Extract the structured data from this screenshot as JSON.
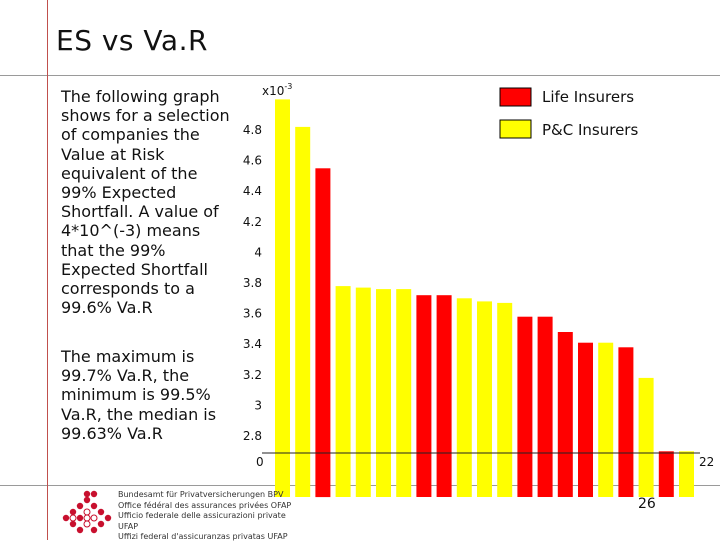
{
  "slide": {
    "title": "ES vs Va.R",
    "paragraph1": "The following graph shows for a selection of companies the Value at Risk equivalent of the 99% Expected Shortfall. A value of 4*10^(-3) means that the 99% Expected Shortfall corresponds to a 99.6% Va.R",
    "paragraph2": "The maximum is 99.7% Va.R, the minimum is 99.5% Va.R, the median is 99.63% Va.R",
    "page_number": "26",
    "footer_lines": [
      "Bundesamt für Privatversicherungen BPV",
      "Office fédéral des assurances privées OFAP",
      "Ufficio federale delle assicurazioni private UFAP",
      "Uffizi federal d'assicuranzas privatas UFAP"
    ],
    "colors": {
      "accent_line": "#c0504d",
      "life": "#ff0000",
      "pc": "#ffff00"
    }
  },
  "chart_data": {
    "type": "bar",
    "exponent_label": "x10",
    "exponent_power": "-3",
    "ylim": [
      2.7,
      5.1
    ],
    "yticks": [
      "2.8",
      "3",
      "3.2",
      "3.4",
      "3.6",
      "3.8",
      "4",
      "4.2",
      "4.4",
      "4.6",
      "4.8"
    ],
    "xtick_first": "0",
    "xtick_last": "22",
    "legend": [
      {
        "name": "Life Insurers",
        "color": "#ff0000"
      },
      {
        "name": "P&C Insurers",
        "color": "#ffff00"
      }
    ],
    "bars": [
      {
        "value": 5.0,
        "group": "P&C Insurers"
      },
      {
        "value": 4.82,
        "group": "P&C Insurers"
      },
      {
        "value": 4.55,
        "group": "Life Insurers"
      },
      {
        "value": 3.78,
        "group": "P&C Insurers"
      },
      {
        "value": 3.77,
        "group": "P&C Insurers"
      },
      {
        "value": 3.76,
        "group": "P&C Insurers"
      },
      {
        "value": 3.76,
        "group": "P&C Insurers"
      },
      {
        "value": 3.72,
        "group": "Life Insurers"
      },
      {
        "value": 3.72,
        "group": "Life Insurers"
      },
      {
        "value": 3.7,
        "group": "P&C Insurers"
      },
      {
        "value": 3.68,
        "group": "P&C Insurers"
      },
      {
        "value": 3.67,
        "group": "P&C Insurers"
      },
      {
        "value": 3.58,
        "group": "Life Insurers"
      },
      {
        "value": 3.58,
        "group": "Life Insurers"
      },
      {
        "value": 3.48,
        "group": "Life Insurers"
      },
      {
        "value": 3.41,
        "group": "Life Insurers"
      },
      {
        "value": 3.41,
        "group": "P&C Insurers"
      },
      {
        "value": 3.38,
        "group": "Life Insurers"
      },
      {
        "value": 3.18,
        "group": "P&C Insurers"
      },
      {
        "value": 2.7,
        "group": "Life Insurers"
      },
      {
        "value": 2.7,
        "group": "P&C Insurers"
      }
    ]
  }
}
